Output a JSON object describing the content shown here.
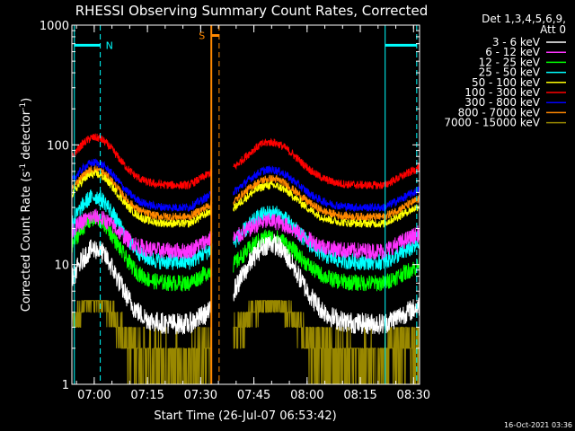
{
  "chart_data": {
    "type": "line",
    "title": "RHESSI Observing Summary Count Rates, Corrected",
    "xlabel": "Start Time (26-Jul-07 06:53:42)",
    "ylabel": "Corrected Count Rate (s",
    "ylabel_exp1": "-1",
    "ylabel_mid": " detector",
    "ylabel_exp2": "-1",
    "ylabel_end": ")",
    "yscale": "log",
    "ylim": [
      1,
      1000
    ],
    "xlim_minutes": [
      0,
      98
    ],
    "x_ticks": [
      {
        "label": "07:00",
        "min": 6.3
      },
      {
        "label": "07:15",
        "min": 21.3
      },
      {
        "label": "07:30",
        "min": 36.3
      },
      {
        "label": "07:45",
        "min": 51.3
      },
      {
        "label": "08:00",
        "min": 66.3
      },
      {
        "label": "08:15",
        "min": 81.3
      },
      {
        "label": "08:30",
        "min": 96.3
      }
    ],
    "y_ticks": [
      {
        "label": "1",
        "v": 1
      },
      {
        "label": "10",
        "v": 10
      },
      {
        "label": "100",
        "v": 100
      },
      {
        "label": "1000",
        "v": 1000
      }
    ],
    "legend_header": [
      "Det 1,3,4,5,6,9,",
      "Att 0"
    ],
    "legend_placement": "right",
    "series": [
      {
        "name": "3 - 6 keV",
        "color": "#ffffff",
        "low": 3.2,
        "peak": 13.5,
        "peak2": 15
      },
      {
        "name": "6 - 12 keV",
        "color": "#ff33ff",
        "low": 13,
        "peak": 25,
        "peak2": 23
      },
      {
        "name": "12 - 25 keV",
        "color": "#00ff00",
        "low": 7,
        "peak": 24,
        "peak2": 17
      },
      {
        "name": "25 - 50 keV",
        "color": "#00ffff",
        "low": 10.5,
        "peak": 37,
        "peak2": 27
      },
      {
        "name": "50 - 100 keV",
        "color": "#ffff00",
        "low": 22,
        "peak": 57,
        "peak2": 46
      },
      {
        "name": "100 - 300 keV",
        "color": "#ff0000",
        "low": 46,
        "peak": 115,
        "peak2": 105
      },
      {
        "name": "300 - 800 keV",
        "color": "#0000ff",
        "low": 30,
        "peak": 71,
        "peak2": 62
      },
      {
        "name": "800 - 7000 keV",
        "color": "#ff8800",
        "low": 25,
        "peak": 62,
        "peak2": 52
      },
      {
        "name": "7000 - 15000 keV",
        "color": "#998800",
        "low": 1.6,
        "peak": 5,
        "peak2": 5
      }
    ],
    "gap_minutes": [
      39.5,
      45.5
    ],
    "annotations": [
      {
        "label": "N",
        "min": 8.0,
        "color": "#00ffff"
      },
      {
        "label": "S",
        "min": 41.0,
        "color": "#ff8800"
      }
    ],
    "timestamp": "16-Oct-2021 03:36"
  }
}
